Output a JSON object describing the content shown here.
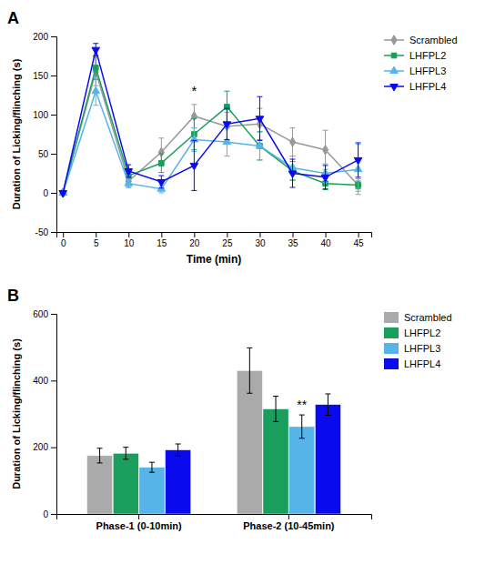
{
  "chart_data": [
    {
      "type": "line",
      "title": "A",
      "xlabel": "Time (min)",
      "ylabel": "Duration of Licking/flinching (s)",
      "x": [
        0,
        5,
        10,
        15,
        20,
        25,
        30,
        35,
        40,
        45
      ],
      "xlim": [
        -1,
        47
      ],
      "xticks": [
        0,
        5,
        10,
        15,
        20,
        25,
        30,
        35,
        40,
        45
      ],
      "ylim": [
        -50,
        200
      ],
      "yticks": [
        -50,
        0,
        50,
        100,
        150,
        200
      ],
      "grid": false,
      "legend": "right",
      "series": [
        {
          "name": "Scrambled",
          "color": "#999999",
          "marker": "diamond",
          "values": [
            0,
            155,
            15,
            52,
            98,
            85,
            88,
            65,
            55,
            10
          ],
          "err": [
            0,
            18,
            8,
            18,
            15,
            18,
            20,
            18,
            25,
            8
          ]
        },
        {
          "name": "LHFPL2",
          "color": "#1a9e5c",
          "marker": "square",
          "values": [
            0,
            160,
            22,
            38,
            75,
            110,
            60,
            28,
            12,
            10
          ],
          "err": [
            0,
            15,
            8,
            12,
            20,
            20,
            18,
            12,
            8,
            5
          ]
        },
        {
          "name": "LHFPL3",
          "color": "#56b4e9",
          "marker": "triangle-up",
          "values": [
            0,
            130,
            12,
            5,
            68,
            65,
            60,
            32,
            25,
            30
          ],
          "err": [
            0,
            18,
            5,
            5,
            15,
            18,
            18,
            15,
            12,
            32
          ]
        },
        {
          "name": "LHFPL4",
          "color": "#0a0aee",
          "marker": "triangle-down",
          "values": [
            0,
            183,
            28,
            14,
            35,
            88,
            95,
            25,
            20,
            42
          ],
          "err": [
            0,
            8,
            8,
            8,
            32,
            20,
            28,
            18,
            15,
            22
          ]
        }
      ],
      "annotations": [
        {
          "text": "*",
          "x": 20,
          "y": 125
        }
      ]
    },
    {
      "type": "bar",
      "title": "B",
      "ylabel": "Duration of Licking/flinching (s)",
      "categories": [
        "Phase-1 (0-10min)",
        "Phase-2 (10-45min)"
      ],
      "ylim": [
        0,
        600
      ],
      "yticks": [
        0,
        200,
        400,
        600
      ],
      "grid": false,
      "legend": "right",
      "series": [
        {
          "name": "Scrambled",
          "color": "#aaaaaa",
          "values": [
            175,
            430
          ],
          "err": [
            22,
            68
          ]
        },
        {
          "name": "LHFPL2",
          "color": "#1a9e5c",
          "values": [
            182,
            315
          ],
          "err": [
            18,
            38
          ]
        },
        {
          "name": "LHFPL3",
          "color": "#56b4e9",
          "values": [
            140,
            262
          ],
          "err": [
            15,
            35
          ]
        },
        {
          "name": "LHFPL4",
          "color": "#0a0aee",
          "values": [
            192,
            328
          ],
          "err": [
            18,
            32
          ]
        }
      ],
      "annotations": [
        {
          "text": "**",
          "category": "Phase-2 (10-45min)",
          "series": "LHFPL3"
        }
      ]
    }
  ]
}
